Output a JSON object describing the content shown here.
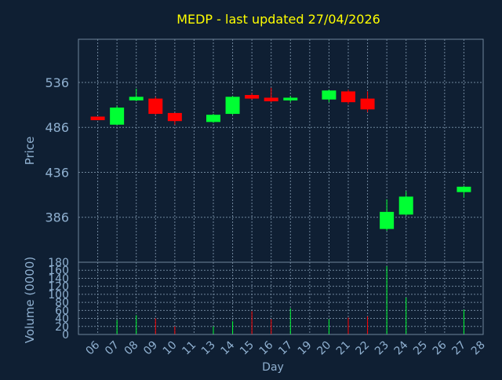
{
  "chart_data": {
    "type": "candlestick",
    "title": "MEDP - last updated 27/04/2026",
    "xlabel": "Day",
    "ylabel": "Price",
    "volume_label": "Volume (0000)",
    "x_ticks": [
      "06",
      "07",
      "08",
      "09",
      "10",
      "11",
      "13",
      "14",
      "15",
      "16",
      "17",
      "19",
      "20",
      "21",
      "22",
      "23",
      "24",
      "25",
      "26",
      "27",
      "28"
    ],
    "price_ticks": [
      386,
      436,
      486,
      536
    ],
    "price_range": [
      336,
      584
    ],
    "volume_ticks": [
      0,
      20,
      40,
      60,
      80,
      100,
      120,
      140,
      160,
      180
    ],
    "volume_range": [
      0,
      180
    ],
    "grid": true,
    "colors": {
      "background": "#0f1f33",
      "text": "#8fb0d0",
      "title": "#ffff00",
      "up": "#00ff33",
      "down": "#ff0000",
      "grid": "#6f859b"
    },
    "candles": [
      {
        "day": "06",
        "open": 498,
        "close": 494,
        "high": 498,
        "low": 494,
        "volume": 0
      },
      {
        "day": "07",
        "open": 489,
        "close": 508,
        "high": 510,
        "low": 489,
        "volume": 36
      },
      {
        "day": "08",
        "open": 516,
        "close": 520,
        "high": 529,
        "low": 515,
        "volume": 48
      },
      {
        "day": "09",
        "open": 518,
        "close": 501,
        "high": 520,
        "low": 500,
        "volume": 40
      },
      {
        "day": "10",
        "open": 502,
        "close": 493,
        "high": 502,
        "low": 489,
        "volume": 20
      },
      {
        "day": "13",
        "open": 492,
        "close": 500,
        "high": 501,
        "low": 491,
        "volume": 20
      },
      {
        "day": "14",
        "open": 501,
        "close": 520,
        "high": 521,
        "low": 500,
        "volume": 33
      },
      {
        "day": "15",
        "open": 522,
        "close": 518,
        "high": 524,
        "low": 517,
        "volume": 58
      },
      {
        "day": "16",
        "open": 519,
        "close": 515,
        "high": 530,
        "low": 514,
        "volume": 38
      },
      {
        "day": "17",
        "open": 516,
        "close": 519,
        "high": 521,
        "low": 514,
        "volume": 65
      },
      {
        "day": "20",
        "open": 517,
        "close": 527,
        "high": 528,
        "low": 514,
        "volume": 38
      },
      {
        "day": "21",
        "open": 526,
        "close": 514,
        "high": 528,
        "low": 512,
        "volume": 42
      },
      {
        "day": "22",
        "open": 518,
        "close": 506,
        "high": 526,
        "low": 503,
        "volume": 45
      },
      {
        "day": "23",
        "open": 373,
        "close": 392,
        "high": 406,
        "low": 371,
        "volume": 170
      },
      {
        "day": "24",
        "open": 389,
        "close": 409,
        "high": 415,
        "low": 388,
        "volume": 92
      },
      {
        "day": "27",
        "open": 414,
        "close": 420,
        "high": 421,
        "low": 408,
        "volume": 62
      }
    ]
  }
}
